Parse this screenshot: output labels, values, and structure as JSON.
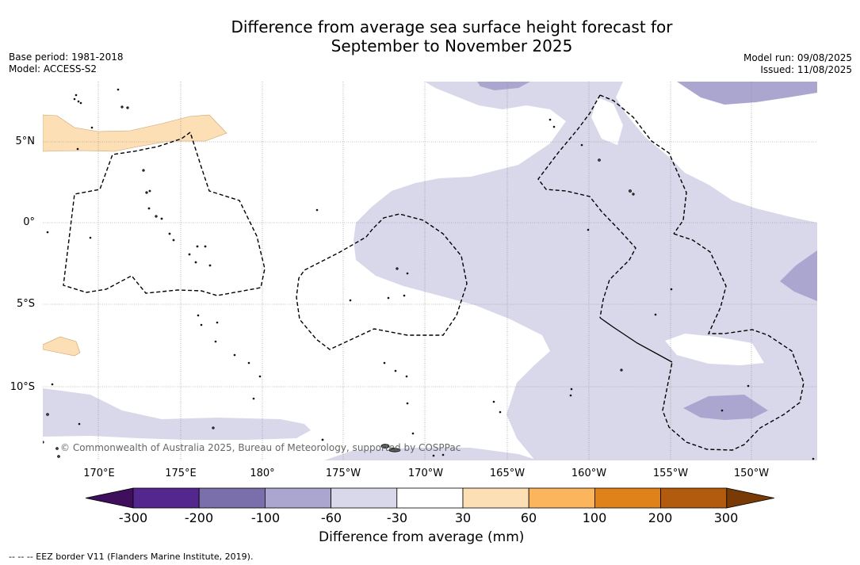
{
  "title_line1": "Difference from average sea surface height forecast for",
  "title_line2": "September to November 2025",
  "base_period": "Base period: 1981-2018",
  "model": "Model: ACCESS-S2",
  "model_run": "Model run: 09/08/2025",
  "issued": "Issued: 11/08/2025",
  "lat_labels": [
    "5°N",
    "0°",
    "5°S",
    "10°S"
  ],
  "lon_labels": [
    "170°E",
    "175°E",
    "180°",
    "175°W",
    "170°W",
    "165°W",
    "160°W",
    "155°W",
    "150°W"
  ],
  "copyright": "© Commonwealth of Australia 2025, Bureau of Meteorology, supported by COSPPac",
  "colorbar": {
    "title": "Difference from average (mm)",
    "ticks": [
      "-300",
      "-200",
      "-100",
      "-60",
      "-30",
      "30",
      "60",
      "100",
      "200",
      "300"
    ],
    "colors": [
      "#3f0f5e",
      "#54278f",
      "#7b6fab",
      "#aba6cf",
      "#d8d8ea",
      "#ffffff",
      "#fddfb5",
      "#fbb55d",
      "#e0821a",
      "#b25a0e",
      "#7a3a06"
    ]
  },
  "footnote": "-- -- -- EEZ border V11 (Flanders Marine Institute, 2019)."
}
